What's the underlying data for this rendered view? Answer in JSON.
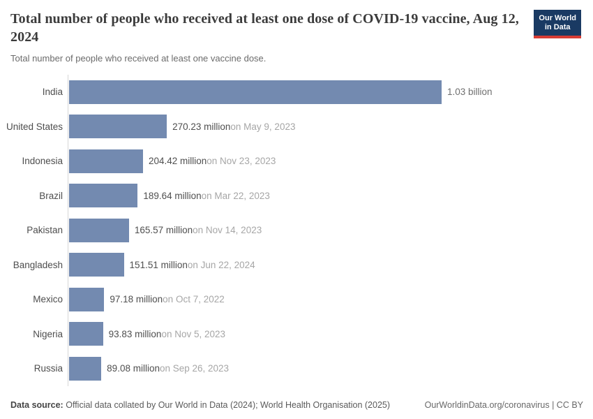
{
  "header": {
    "title": "Total number of people who received at least one dose of COVID-19 vaccine, Aug 12, 2024",
    "subtitle": "Total number of people who received at least one vaccine dose.",
    "logo": {
      "line1": "Our World",
      "line2": "in Data"
    }
  },
  "chart_data": {
    "type": "bar",
    "orientation": "horizontal",
    "title": "Total number of people who received at least one dose of COVID-19 vaccine, Aug 12, 2024",
    "subtitle": "Total number of people who received at least one vaccine dose.",
    "unit": "people (millions)",
    "xlim_million": [
      0,
      1030
    ],
    "grid": false,
    "legend": "none",
    "bar_color": "#738ab0",
    "axis_color": "#d6d6d6",
    "max_value_million": 1030,
    "rows": [
      {
        "label": "India",
        "value_million": 1030,
        "value_label": "1.03 billion",
        "date_label": ""
      },
      {
        "label": "United States",
        "value_million": 270.23,
        "value_label": "270.23 million",
        "date_label": "on May 9, 2023"
      },
      {
        "label": "Indonesia",
        "value_million": 204.42,
        "value_label": "204.42 million",
        "date_label": "on Nov 23, 2023"
      },
      {
        "label": "Brazil",
        "value_million": 189.64,
        "value_label": "189.64 million",
        "date_label": "on Mar 22, 2023"
      },
      {
        "label": "Pakistan",
        "value_million": 165.57,
        "value_label": "165.57 million",
        "date_label": "on Nov 14, 2023"
      },
      {
        "label": "Bangladesh",
        "value_million": 151.51,
        "value_label": "151.51 million",
        "date_label": "on Jun 22, 2024"
      },
      {
        "label": "Mexico",
        "value_million": 97.18,
        "value_label": "97.18 million",
        "date_label": "on Oct 7, 2022"
      },
      {
        "label": "Nigeria",
        "value_million": 93.83,
        "value_label": "93.83 million",
        "date_label": "on Nov 5, 2023"
      },
      {
        "label": "Russia",
        "value_million": 89.08,
        "value_label": "89.08 million",
        "date_label": "on Sep 26, 2023"
      }
    ]
  },
  "footer": {
    "source_label": "Data source:",
    "source_text": "Official data collated by Our World in Data (2024); World Health Organisation (2025)",
    "link_text": "OurWorldinData.org/coronavirus | CC BY"
  },
  "colors": {
    "bar": "#738ab0",
    "logo_navy": "#1a3a63",
    "logo_red": "#d73c34",
    "title_text": "#3b3b3b",
    "value_text": "#4f4f4f",
    "date_text": "#a6a6a6"
  }
}
